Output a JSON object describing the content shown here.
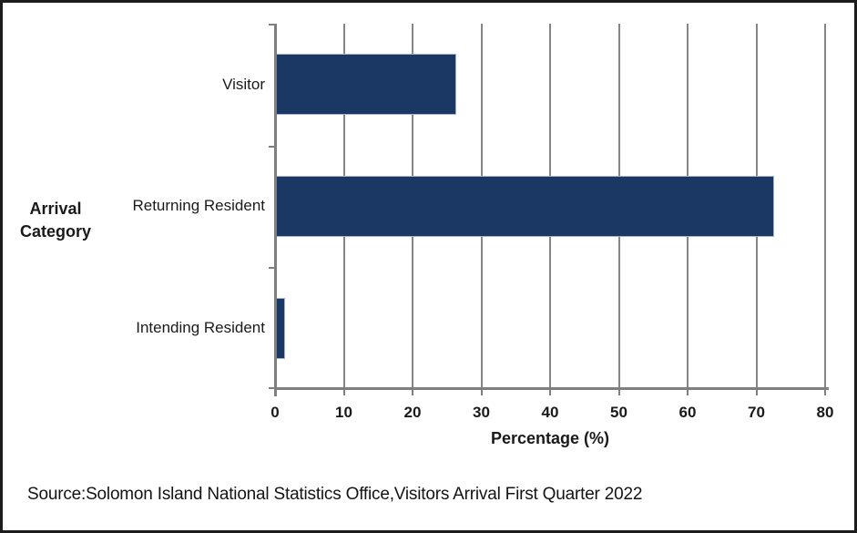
{
  "chart_data": {
    "type": "bar",
    "orientation": "horizontal",
    "title": "",
    "categories": [
      "Visitor",
      "Returning Resident",
      "Intending Resident"
    ],
    "values": [
      26.4,
      72.6,
      1.4
    ],
    "xlabel": "Percentage (%)",
    "ylabel": "Arrival Category",
    "x_ticks": [
      0,
      10,
      20,
      30,
      40,
      50,
      60,
      70,
      80
    ],
    "xlim": [
      0,
      80
    ],
    "grid": "vertical gridlines on",
    "legend": "none",
    "bar_color": "#1b3763",
    "bar_border_color": "#a3b2ca",
    "axis_color": "#7f7f7f",
    "gridline_color": "#858585",
    "text_color": "#1a1a1a",
    "source": "Source:Solomon Island National Statistics Office,Visitors Arrival First Quarter 2022"
  }
}
